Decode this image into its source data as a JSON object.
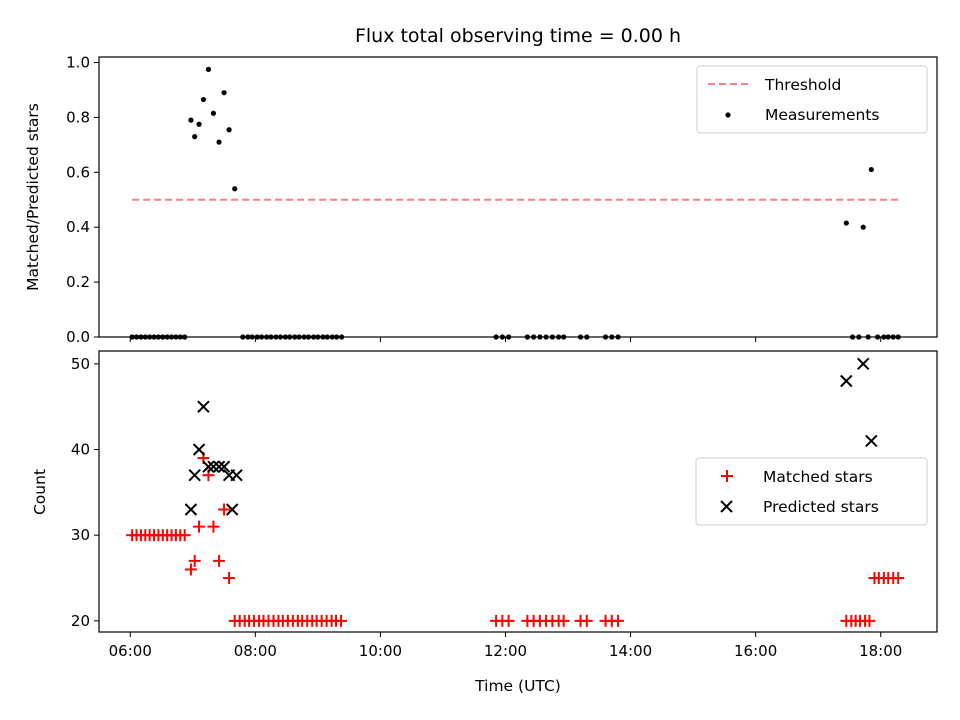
{
  "chart_data": {
    "title": "Flux total observing time = 0.00 h",
    "xlabel": "Time (UTC)",
    "xlim_hours": [
      5.5,
      18.9
    ],
    "x_ticks": [
      {
        "hour": 6,
        "label": "06:00"
      },
      {
        "hour": 8,
        "label": "08:00"
      },
      {
        "hour": 10,
        "label": "10:00"
      },
      {
        "hour": 12,
        "label": "12:00"
      },
      {
        "hour": 14,
        "label": "14:00"
      },
      {
        "hour": 16,
        "label": "16:00"
      },
      {
        "hour": 18,
        "label": "18:00"
      }
    ],
    "panels": [
      {
        "type": "scatter",
        "ylabel": "Matched/Predicted stars",
        "ylim": [
          0,
          1.02
        ],
        "y_ticks": [
          "0.0",
          "0.2",
          "0.4",
          "0.6",
          "0.8",
          "1.0"
        ],
        "y_tick_values": [
          0,
          0.2,
          0.4,
          0.6,
          0.8,
          1.0
        ],
        "grid": false,
        "legend": {
          "position": "top-right",
          "entries": [
            "Threshold",
            "Measurements"
          ]
        },
        "threshold": {
          "name": "Threshold",
          "value": 0.5,
          "x_range": [
            6.03,
            18.3
          ],
          "color": "#ff7f7f"
        },
        "series": [
          {
            "name": "Measurements",
            "color": "#000000",
            "points": [
              [
                6.03,
                0
              ],
              [
                6.1,
                0
              ],
              [
                6.17,
                0
              ],
              [
                6.24,
                0
              ],
              [
                6.31,
                0
              ],
              [
                6.38,
                0
              ],
              [
                6.45,
                0
              ],
              [
                6.52,
                0
              ],
              [
                6.59,
                0
              ],
              [
                6.66,
                0
              ],
              [
                6.73,
                0
              ],
              [
                6.8,
                0
              ],
              [
                6.87,
                0
              ],
              [
                6.97,
                0.79
              ],
              [
                7.03,
                0.73
              ],
              [
                7.1,
                0.775
              ],
              [
                7.17,
                0.865
              ],
              [
                7.25,
                0.975
              ],
              [
                7.33,
                0.815
              ],
              [
                7.42,
                0.71
              ],
              [
                7.5,
                0.89
              ],
              [
                7.58,
                0.755
              ],
              [
                7.67,
                0.54
              ],
              [
                7.8,
                0
              ],
              [
                7.88,
                0
              ],
              [
                7.95,
                0
              ],
              [
                8.03,
                0
              ],
              [
                8.1,
                0
              ],
              [
                8.18,
                0
              ],
              [
                8.25,
                0
              ],
              [
                8.33,
                0
              ],
              [
                8.4,
                0
              ],
              [
                8.48,
                0
              ],
              [
                8.55,
                0
              ],
              [
                8.63,
                0
              ],
              [
                8.7,
                0
              ],
              [
                8.78,
                0
              ],
              [
                8.85,
                0
              ],
              [
                8.93,
                0
              ],
              [
                9.0,
                0
              ],
              [
                9.08,
                0
              ],
              [
                9.15,
                0
              ],
              [
                9.23,
                0
              ],
              [
                9.3,
                0
              ],
              [
                9.38,
                0
              ],
              [
                11.85,
                0
              ],
              [
                11.95,
                0
              ],
              [
                12.05,
                0
              ],
              [
                12.35,
                0
              ],
              [
                12.45,
                0
              ],
              [
                12.55,
                0
              ],
              [
                12.65,
                0
              ],
              [
                12.75,
                0
              ],
              [
                12.85,
                0
              ],
              [
                12.93,
                0
              ],
              [
                13.2,
                0
              ],
              [
                13.3,
                0
              ],
              [
                13.6,
                0
              ],
              [
                13.7,
                0
              ],
              [
                13.8,
                0
              ],
              [
                17.45,
                0.415
              ],
              [
                17.55,
                0
              ],
              [
                17.65,
                0
              ],
              [
                17.72,
                0.4
              ],
              [
                17.8,
                0
              ],
              [
                17.85,
                0.61
              ],
              [
                17.95,
                0
              ],
              [
                18.05,
                0
              ],
              [
                18.12,
                0
              ],
              [
                18.2,
                0
              ],
              [
                18.28,
                0
              ]
            ]
          }
        ]
      },
      {
        "type": "scatter",
        "ylabel": "Count",
        "ylim": [
          18.7,
          51.5
        ],
        "y_ticks": [
          "20",
          "30",
          "40",
          "50"
        ],
        "y_tick_values": [
          20,
          30,
          40,
          50
        ],
        "grid": false,
        "legend": {
          "position": "center-right",
          "entries": [
            "Matched stars",
            "Predicted stars"
          ]
        },
        "series": [
          {
            "name": "Matched stars",
            "marker": "plus",
            "color": "#ff0000",
            "points": [
              [
                6.03,
                30
              ],
              [
                6.1,
                30
              ],
              [
                6.17,
                30
              ],
              [
                6.24,
                30
              ],
              [
                6.31,
                30
              ],
              [
                6.38,
                30
              ],
              [
                6.45,
                30
              ],
              [
                6.52,
                30
              ],
              [
                6.59,
                30
              ],
              [
                6.66,
                30
              ],
              [
                6.73,
                30
              ],
              [
                6.8,
                30
              ],
              [
                6.87,
                30
              ],
              [
                6.97,
                26
              ],
              [
                7.03,
                27
              ],
              [
                7.1,
                31
              ],
              [
                7.17,
                39
              ],
              [
                7.25,
                37
              ],
              [
                7.33,
                31
              ],
              [
                7.42,
                27
              ],
              [
                7.5,
                33
              ],
              [
                7.58,
                25
              ],
              [
                7.67,
                20
              ],
              [
                7.75,
                20
              ],
              [
                7.83,
                20
              ],
              [
                7.9,
                20
              ],
              [
                7.98,
                20
              ],
              [
                8.06,
                20
              ],
              [
                8.13,
                20
              ],
              [
                8.21,
                20
              ],
              [
                8.29,
                20
              ],
              [
                8.37,
                20
              ],
              [
                8.44,
                20
              ],
              [
                8.52,
                20
              ],
              [
                8.6,
                20
              ],
              [
                8.68,
                20
              ],
              [
                8.75,
                20
              ],
              [
                8.83,
                20
              ],
              [
                8.91,
                20
              ],
              [
                8.98,
                20
              ],
              [
                9.06,
                20
              ],
              [
                9.14,
                20
              ],
              [
                9.22,
                20
              ],
              [
                9.29,
                20
              ],
              [
                9.37,
                20
              ],
              [
                11.85,
                20
              ],
              [
                11.95,
                20
              ],
              [
                12.05,
                20
              ],
              [
                12.35,
                20
              ],
              [
                12.45,
                20
              ],
              [
                12.55,
                20
              ],
              [
                12.65,
                20
              ],
              [
                12.75,
                20
              ],
              [
                12.85,
                20
              ],
              [
                12.93,
                20
              ],
              [
                13.2,
                20
              ],
              [
                13.3,
                20
              ],
              [
                13.6,
                20
              ],
              [
                13.7,
                20
              ],
              [
                13.8,
                20
              ],
              [
                17.45,
                20
              ],
              [
                17.53,
                20
              ],
              [
                17.6,
                20
              ],
              [
                17.67,
                20
              ],
              [
                17.75,
                20
              ],
              [
                17.82,
                20
              ],
              [
                17.9,
                25
              ],
              [
                17.97,
                25
              ],
              [
                18.05,
                25
              ],
              [
                18.12,
                25
              ],
              [
                18.2,
                25
              ],
              [
                18.28,
                25
              ]
            ]
          },
          {
            "name": "Predicted stars",
            "marker": "x",
            "color": "#000000",
            "points": [
              [
                6.97,
                33
              ],
              [
                7.03,
                37
              ],
              [
                7.1,
                40
              ],
              [
                7.17,
                45
              ],
              [
                7.25,
                38
              ],
              [
                7.33,
                38
              ],
              [
                7.42,
                38
              ],
              [
                7.5,
                38
              ],
              [
                7.58,
                37
              ],
              [
                7.63,
                33
              ],
              [
                7.7,
                37
              ],
              [
                17.45,
                48
              ],
              [
                17.72,
                50
              ],
              [
                17.85,
                41
              ]
            ]
          }
        ]
      }
    ]
  }
}
